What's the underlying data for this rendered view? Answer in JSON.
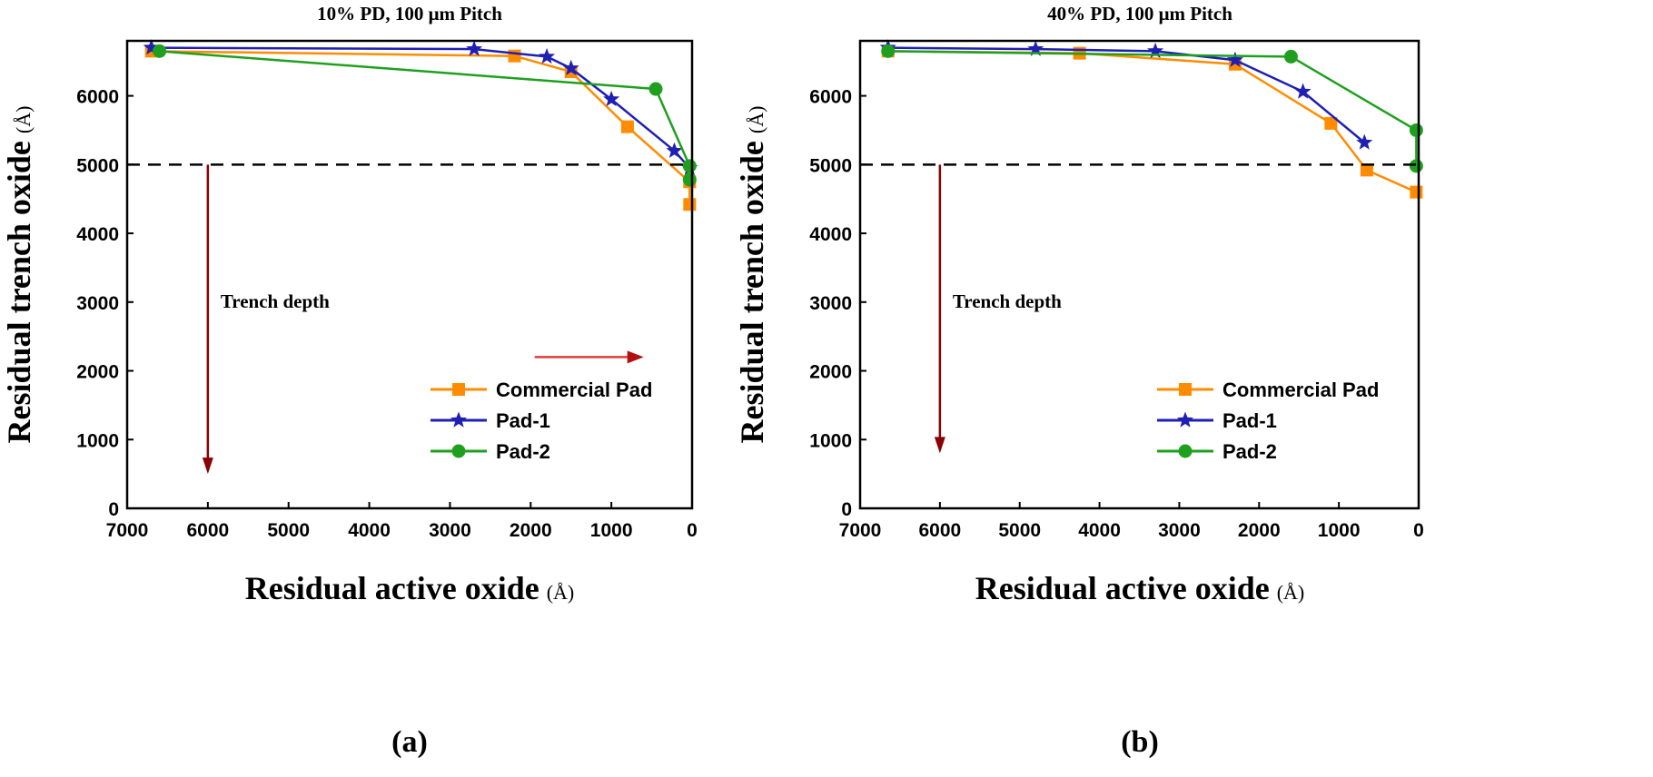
{
  "chart_data": [
    {
      "type": "line",
      "panel_label": "(a)",
      "title": "10% PD, 100 μm Pitch",
      "xlabel": "Residual active oxide",
      "xunit": "(Å)",
      "ylabel": "Residual trench oxide",
      "yunit": "(Å)",
      "xlim": [
        7000,
        0
      ],
      "ylim": [
        0,
        6800
      ],
      "xticks": [
        7000,
        6000,
        5000,
        4000,
        3000,
        2000,
        1000,
        0
      ],
      "yticks": [
        0,
        1000,
        2000,
        3000,
        4000,
        5000,
        6000
      ],
      "reference_line": {
        "y": 5000,
        "style": "dashed"
      },
      "annotation": {
        "text": "Trench depth",
        "arrow_x": 6000,
        "arrow_y_from": 5000,
        "arrow_y_to": 500
      },
      "extra_arrow": {
        "x_from": 1950,
        "x_to": 600,
        "y": 2200
      },
      "legend_position": "bottom-right",
      "series": [
        {
          "name": "Commercial Pad",
          "color": "#ff8c00",
          "marker": "square",
          "x": [
            6700,
            2200,
            1500,
            800,
            30,
            30
          ],
          "y": [
            6650,
            6580,
            6350,
            5550,
            4750,
            4420
          ]
        },
        {
          "name": "Pad-1",
          "color": "#1f1fb4",
          "marker": "star",
          "x": [
            6700,
            2700,
            1800,
            1500,
            1000,
            220,
            30
          ],
          "y": [
            6700,
            6680,
            6570,
            6400,
            5950,
            5200,
            4950
          ]
        },
        {
          "name": "Pad-2",
          "color": "#1ea01e",
          "marker": "circle",
          "x": [
            6600,
            450,
            30,
            30
          ],
          "y": [
            6650,
            6100,
            4980,
            4780
          ]
        }
      ]
    },
    {
      "type": "line",
      "panel_label": "(b)",
      "title": "40% PD, 100 μm Pitch",
      "xlabel": "Residual active oxide",
      "xunit": "(Å)",
      "ylabel": "Residual trench oxide",
      "yunit": "(Å)",
      "xlim": [
        7000,
        0
      ],
      "ylim": [
        0,
        6800
      ],
      "xticks": [
        7000,
        6000,
        5000,
        4000,
        3000,
        2000,
        1000,
        0
      ],
      "yticks": [
        0,
        1000,
        2000,
        3000,
        4000,
        5000,
        6000
      ],
      "reference_line": {
        "y": 5000,
        "style": "dashed"
      },
      "annotation": {
        "text": "Trench depth",
        "arrow_x": 6000,
        "arrow_y_from": 5000,
        "arrow_y_to": 800
      },
      "legend_position": "bottom-right",
      "series": [
        {
          "name": "Commercial Pad",
          "color": "#ff8c00",
          "marker": "square",
          "x": [
            6650,
            4250,
            2300,
            1100,
            650,
            30
          ],
          "y": [
            6650,
            6620,
            6460,
            5600,
            4920,
            4600
          ]
        },
        {
          "name": "Pad-1",
          "color": "#1f1fb4",
          "marker": "star",
          "x": [
            6650,
            4800,
            3300,
            2300,
            1450,
            680
          ],
          "y": [
            6700,
            6680,
            6650,
            6520,
            6060,
            5320
          ]
        },
        {
          "name": "Pad-2",
          "color": "#1ea01e",
          "marker": "circle",
          "x": [
            6650,
            1600,
            30,
            30
          ],
          "y": [
            6650,
            6570,
            5500,
            4980
          ]
        }
      ]
    }
  ]
}
